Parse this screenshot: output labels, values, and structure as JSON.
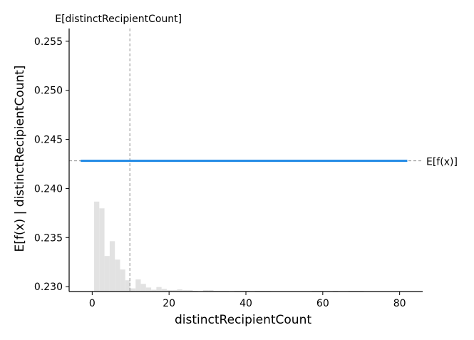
{
  "chart_data": {
    "type": "line",
    "xlabel": "distinctRecipientCount",
    "ylabel": "E[f(x) | distinctRecipientCount]",
    "xlim": [
      -6,
      86
    ],
    "ylim": [
      0.2295,
      0.2563
    ],
    "x_ticks": [
      "0",
      "20",
      "40",
      "60",
      "80"
    ],
    "y_ticks": [
      "0.230",
      "0.235",
      "0.240",
      "0.245",
      "0.250",
      "0.255"
    ],
    "grid": false,
    "series": [
      {
        "x": [
          -3,
          82
        ],
        "y": [
          0.24282,
          0.24282
        ],
        "color": "#1e88e5"
      }
    ],
    "expected_value": {
      "y": 0.24282,
      "label": "E[f(x)]"
    },
    "feature_mean": {
      "x": 9.8,
      "label": "E[distinctRecipientCount]"
    },
    "histogram": {
      "bin_width": 1.35,
      "bins": [
        {
          "x": 0.5,
          "density": 0.1
        },
        {
          "x": 1.85,
          "density": 0.0925
        },
        {
          "x": 3.2,
          "density": 0.0395
        },
        {
          "x": 4.55,
          "density": 0.056
        },
        {
          "x": 5.9,
          "density": 0.0355
        },
        {
          "x": 7.25,
          "density": 0.0245
        },
        {
          "x": 8.6,
          "density": 0.0125
        },
        {
          "x": 9.95,
          "density": 0.0035
        },
        {
          "x": 11.3,
          "density": 0.0135
        },
        {
          "x": 12.65,
          "density": 0.0085
        },
        {
          "x": 14.0,
          "density": 0.0045
        },
        {
          "x": 15.35,
          "density": 0.002
        },
        {
          "x": 16.7,
          "density": 0.005
        },
        {
          "x": 18.05,
          "density": 0.003
        },
        {
          "x": 19.4,
          "density": 0.0015
        },
        {
          "x": 20.75,
          "density": 0.0015
        },
        {
          "x": 22.1,
          "density": 0.0025
        },
        {
          "x": 23.45,
          "density": 0.0015
        },
        {
          "x": 24.8,
          "density": 0.0015
        },
        {
          "x": 26.15,
          "density": 0.0005
        },
        {
          "x": 28.85,
          "density": 0.0015
        },
        {
          "x": 30.2,
          "density": 0.0015
        },
        {
          "x": 31.55,
          "density": 0.0005
        },
        {
          "x": 32.9,
          "density": 0.0005
        },
        {
          "x": 34.25,
          "density": 0.0005
        },
        {
          "x": 36.95,
          "density": 0.0005
        },
        {
          "x": 38.3,
          "density": 0.0005
        },
        {
          "x": 39.65,
          "density": 0.0005
        },
        {
          "x": 42.35,
          "density": 0.0005
        },
        {
          "x": 43.7,
          "density": 0.0005
        },
        {
          "x": 45.05,
          "density": 0.0005
        },
        {
          "x": 57.2,
          "density": 0.0005
        },
        {
          "x": 58.55,
          "density": 0.0005
        },
        {
          "x": 62.6,
          "density": 0.0005
        },
        {
          "x": 66.65,
          "density": 0.0005
        },
        {
          "x": 68.0,
          "density": 0.0005
        },
        {
          "x": 69.35,
          "density": 0.0005
        }
      ]
    }
  }
}
